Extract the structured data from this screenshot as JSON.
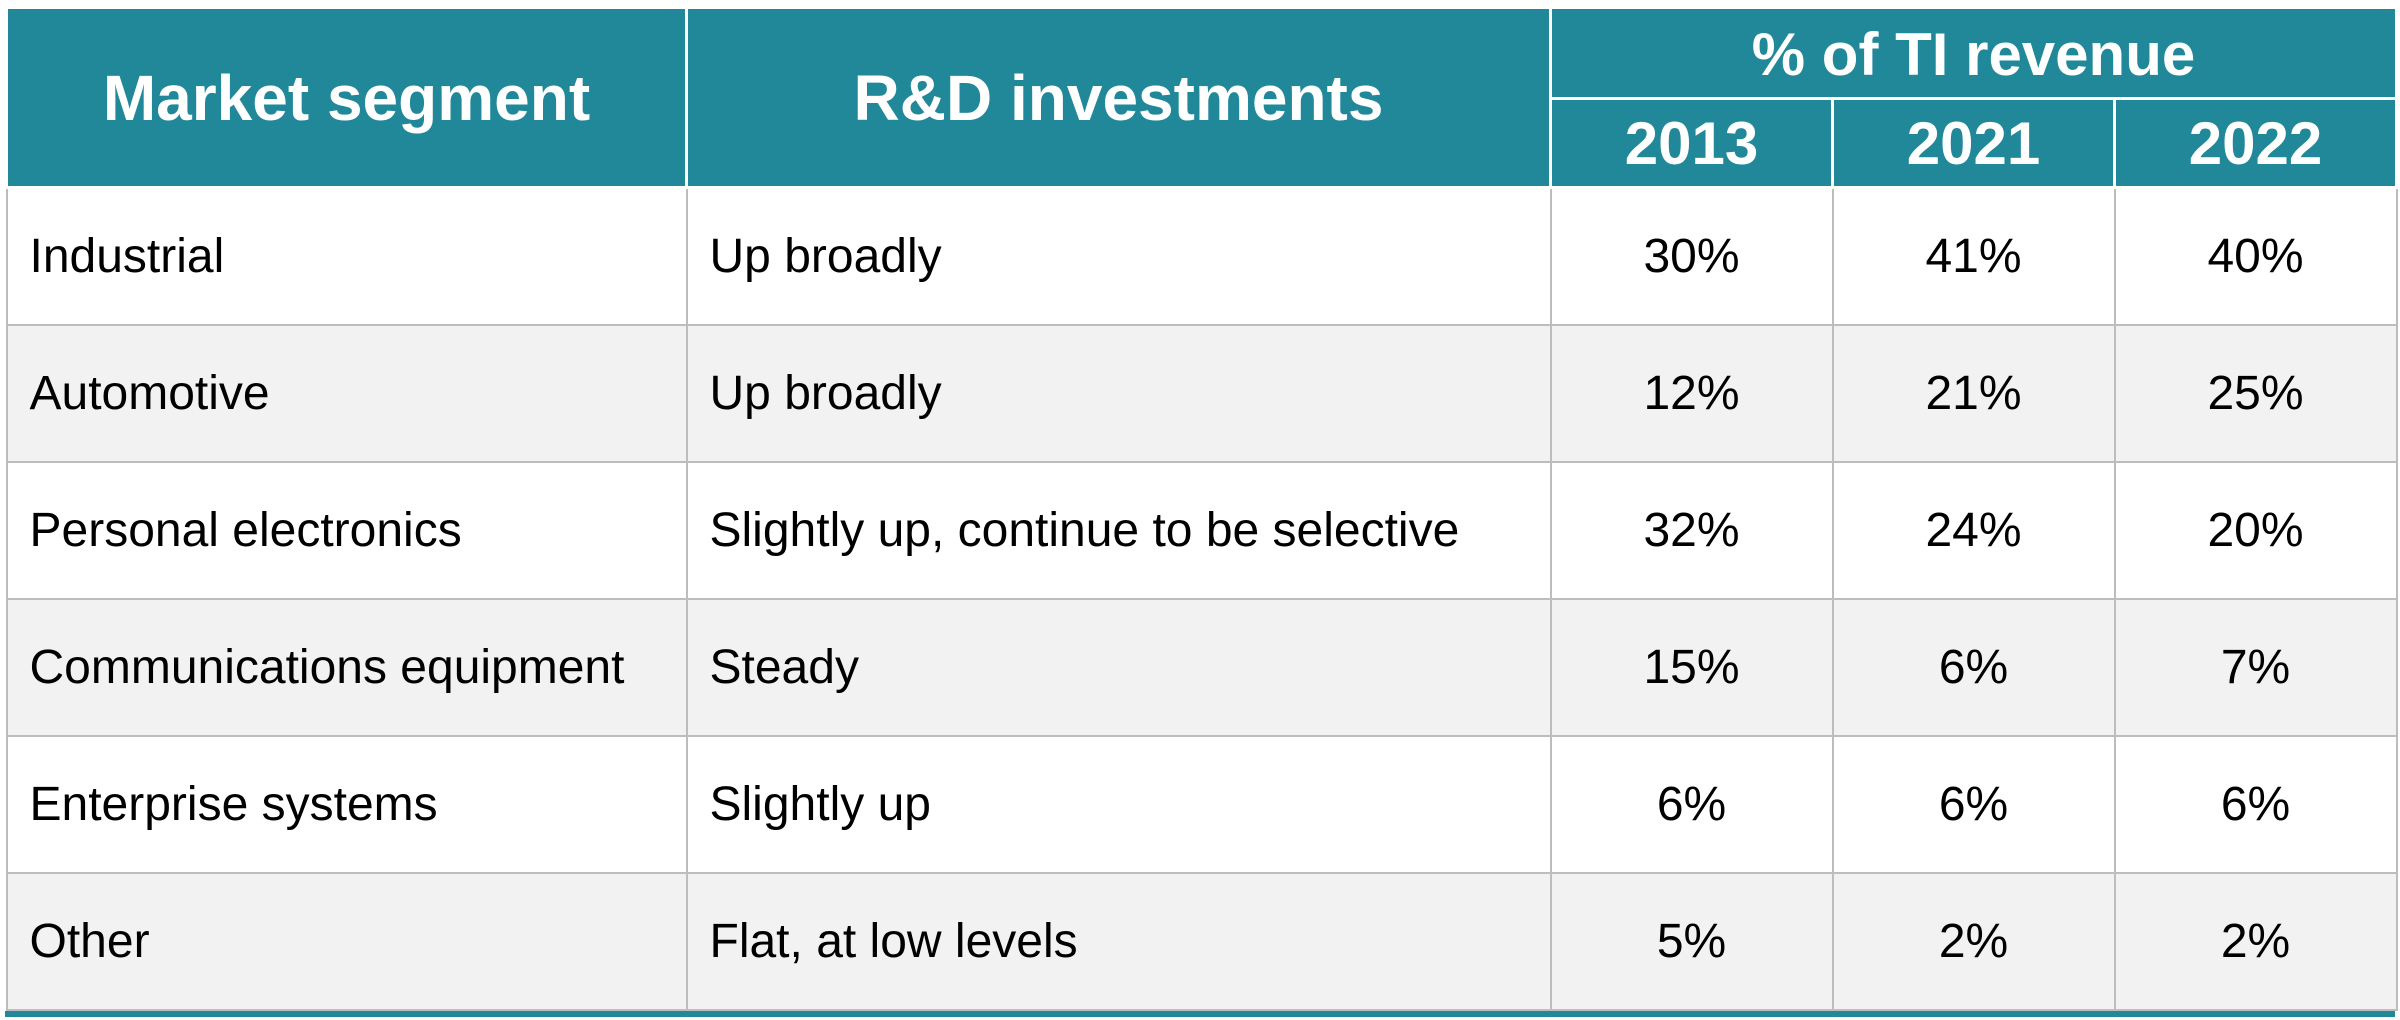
{
  "table": {
    "headers": {
      "market_segment": "Market segment",
      "rd_investments": "R&D investments",
      "revenue_group": "% of TI revenue",
      "years": [
        "2013",
        "2021",
        "2022"
      ]
    },
    "rows": [
      {
        "segment": "Industrial",
        "rd": "Up broadly",
        "values": [
          "30%",
          "41%",
          "40%"
        ]
      },
      {
        "segment": "Automotive",
        "rd": "Up broadly",
        "values": [
          "12%",
          "21%",
          "25%"
        ]
      },
      {
        "segment": "Personal electronics",
        "rd": "Slightly up, continue to be selective",
        "values": [
          "32%",
          "24%",
          "20%"
        ]
      },
      {
        "segment": "Communications equipment",
        "rd": "Steady",
        "values": [
          "15%",
          "6%",
          "7%"
        ]
      },
      {
        "segment": "Enterprise systems",
        "rd": "Slightly up",
        "values": [
          "6%",
          "6%",
          "6%"
        ]
      },
      {
        "segment": "Other",
        "rd": "Flat, at low levels",
        "values": [
          "5%",
          "2%",
          "2%"
        ]
      }
    ]
  },
  "colors": {
    "header_bg": "#21889a",
    "header_text": "#ffffff",
    "row_alt_bg": "#f2f2f2",
    "grid": "#bdbdbd"
  }
}
